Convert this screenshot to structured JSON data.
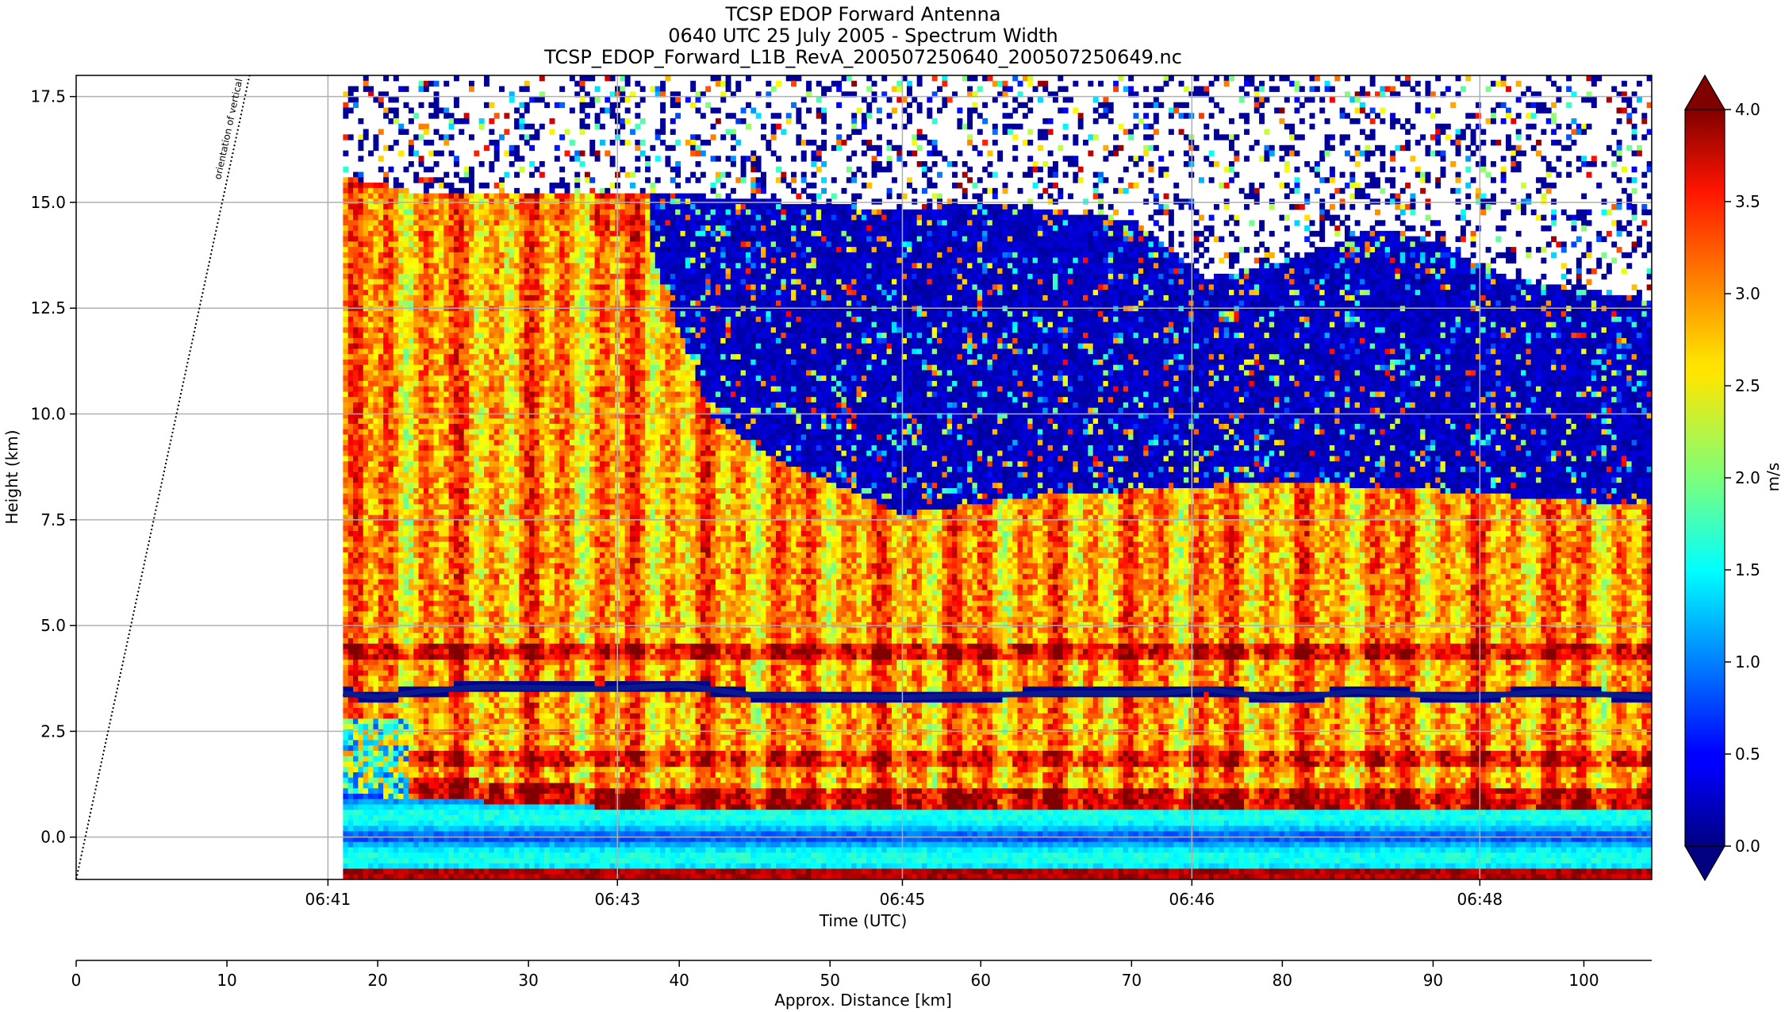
{
  "chart_data": {
    "type": "heatmap",
    "title_lines": [
      "TCSP EDOP Forward Antenna",
      "0640 UTC 25 July 2005 - Spectrum Width",
      "TCSP_EDOP_Forward_L1B_RevA_200507250640_200507250649.nc"
    ],
    "xlabel": "Time (UTC)",
    "ylabel": "Height (km)",
    "x2label": "Approx. Distance [km]",
    "colorbar_label": "m/s",
    "annotation": "orientation of vertical",
    "x_ticks": [
      "06:41",
      "06:43",
      "06:45",
      "06:46",
      "06:48"
    ],
    "x_tick_distances_km": [
      16.7,
      35.9,
      54.8,
      74.0,
      93.1
    ],
    "distance_range_km": [
      0,
      104.5
    ],
    "data_start_km": 17.7,
    "ylim": [
      -1.0,
      18.0
    ],
    "y_ticks": [
      0.0,
      2.5,
      5.0,
      7.5,
      10.0,
      12.5,
      15.0,
      17.5
    ],
    "y_tick_labels": [
      "0.0",
      "2.5",
      "5.0",
      "7.5",
      "10.0",
      "12.5",
      "15.0",
      "17.5"
    ],
    "distance_ticks": [
      0,
      10,
      20,
      30,
      40,
      50,
      60,
      70,
      80,
      90,
      100
    ],
    "distance_tick_labels": [
      "0",
      "10",
      "20",
      "30",
      "40",
      "50",
      "60",
      "70",
      "80",
      "90",
      "100"
    ],
    "clim": [
      0.0,
      4.0
    ],
    "colorbar_ticks": [
      0.0,
      0.5,
      1.0,
      1.5,
      2.0,
      2.5,
      3.0,
      3.5,
      4.0
    ],
    "colorbar_tick_labels": [
      "0.0",
      "0.5",
      "1.0",
      "1.5",
      "2.0",
      "2.5",
      "3.0",
      "3.5",
      "4.0"
    ],
    "colormap": "jet",
    "grid": true,
    "cloud_top_km": [
      [
        17.7,
        15.4
      ],
      [
        23,
        15.0
      ],
      [
        40,
        15.0
      ],
      [
        55,
        14.6
      ],
      [
        60,
        14.8
      ],
      [
        70,
        14.4
      ],
      [
        75,
        13.0
      ],
      [
        82,
        13.6
      ],
      [
        86,
        14.2
      ],
      [
        90,
        13.9
      ],
      [
        95,
        13.0
      ],
      [
        104.5,
        12.5
      ]
    ],
    "echo_top_km": [
      [
        17.7,
        15.4
      ],
      [
        28,
        15.0
      ],
      [
        38,
        14.0
      ],
      [
        40,
        12.0
      ],
      [
        42,
        10.0
      ],
      [
        46,
        9.0
      ],
      [
        50,
        8.4
      ],
      [
        55,
        7.6
      ],
      [
        62,
        8.0
      ],
      [
        70,
        8.2
      ],
      [
        80,
        8.4
      ],
      [
        90,
        8.2
      ],
      [
        104.5,
        7.8
      ]
    ],
    "melting_layer_km": [
      [
        17.7,
        3.4
      ],
      [
        20,
        3.3
      ],
      [
        23,
        3.45
      ],
      [
        27,
        3.55
      ],
      [
        35,
        3.5
      ],
      [
        40,
        3.6
      ],
      [
        45,
        3.35
      ],
      [
        55,
        3.3
      ],
      [
        65,
        3.4
      ],
      [
        72,
        3.4
      ],
      [
        75,
        3.5
      ],
      [
        80,
        3.25
      ],
      [
        85,
        3.45
      ],
      [
        92,
        3.3
      ],
      [
        98,
        3.45
      ],
      [
        104.5,
        3.3
      ]
    ],
    "surface_km": [
      [
        17.7,
        1.0
      ],
      [
        25,
        0.9
      ],
      [
        28,
        0.8
      ],
      [
        35,
        0.7
      ],
      [
        50,
        0.6
      ],
      [
        70,
        0.6
      ],
      [
        104.5,
        0.6
      ]
    ],
    "vertical_orientation_line_km": [
      [
        0,
        -1.0
      ],
      [
        11.5,
        18.0
      ]
    ]
  }
}
